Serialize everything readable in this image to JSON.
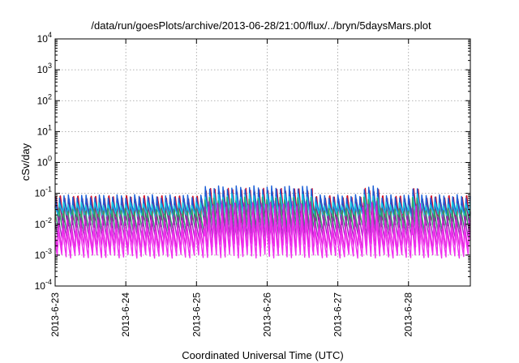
{
  "chart_data": {
    "type": "line",
    "title": "/data/run/goesPlots/archive/2013-06-28/21:00/flux/../bryn/5daysMars.plot",
    "xlabel": "Coordinated Universal Time (UTC)",
    "ylabel": "cSv/day",
    "yscale": "log",
    "ylim": [
      0.0001,
      10000
    ],
    "y_ticks": [
      {
        "base": "10",
        "exp": "-4",
        "value": 0.0001
      },
      {
        "base": "10",
        "exp": "-3",
        "value": 0.001
      },
      {
        "base": "10",
        "exp": "-2",
        "value": 0.01
      },
      {
        "base": "10",
        "exp": "-1",
        "value": 0.1
      },
      {
        "base": "10",
        "exp": "0",
        "value": 1
      },
      {
        "base": "10",
        "exp": "1",
        "value": 10
      },
      {
        "base": "10",
        "exp": "2",
        "value": 100
      },
      {
        "base": "10",
        "exp": "3",
        "value": 1000
      },
      {
        "base": "10",
        "exp": "4",
        "value": 10000
      }
    ],
    "xlim": [
      "2013-06-23",
      "2013-06-28T21:00"
    ],
    "x_ticks": [
      "2013-6-23",
      "2013-6-24",
      "2013-6-25",
      "2013-6-26",
      "2013-6-27",
      "2013-6-28"
    ],
    "grid": true,
    "legend": "none",
    "oscillation_period_hours": 1.5,
    "series": [
      {
        "color": "#d0102a",
        "peak": 0.1,
        "trough": 0.012
      },
      {
        "color": "#7a1f8c",
        "peak": 0.075,
        "trough": 0.008
      },
      {
        "color": "#1b5fd6",
        "peak": 0.085,
        "trough": 0.02
      },
      {
        "color": "#19c8e0",
        "peak": 0.05,
        "trough": 0.018
      },
      {
        "color": "#2ea36a",
        "peak": 0.035,
        "trough": 0.006
      },
      {
        "color": "#9b2fb8",
        "peak": 0.02,
        "trough": 0.0035
      },
      {
        "color": "#e020d8",
        "peak": 0.012,
        "trough": 0.0016
      },
      {
        "color": "#f030f0",
        "peak": 0.009,
        "trough": 0.0009
      }
    ]
  }
}
